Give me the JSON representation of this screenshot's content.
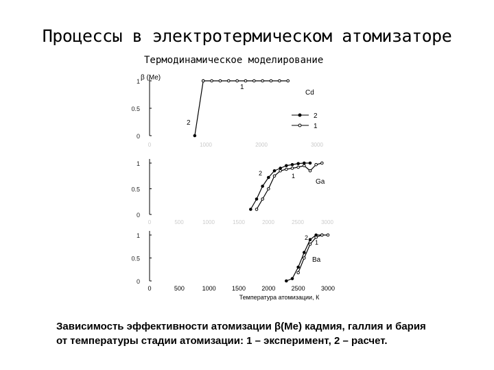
{
  "slide": {
    "title": "Процессы в электротермическом атомизаторе",
    "subtitle": "Термодинамическое моделирование",
    "caption_line1": "Зависимость эффективности атомизации β(Me) кадмия, галлия и бария",
    "caption_line2": "от температуры стадии атомизации: 1 – эксперимент, 2 – расчет."
  },
  "chart_data": [
    {
      "type": "line",
      "panel": "Cd",
      "ylabel": "β (Me)",
      "x_ticks": [
        0,
        1000,
        2000,
        3000
      ],
      "y_ticks": [
        "0",
        "0.5",
        "1"
      ],
      "xlim": [
        0,
        3000
      ],
      "ylim": [
        0,
        1
      ],
      "element_label": "Cd",
      "legend": {
        "placement": "right",
        "entries": [
          "2",
          "1"
        ]
      },
      "curve_labels": [
        "1",
        "2"
      ],
      "series": [
        {
          "name": "2",
          "marker": "filled",
          "x": [
            800,
            950
          ],
          "y": [
            0,
            1
          ]
        },
        {
          "name": "1",
          "marker": "open",
          "x": [
            950,
            1100,
            1250,
            1400,
            1550,
            1700,
            1850,
            2000,
            2150,
            2300,
            2450
          ],
          "y": [
            1,
            1,
            1,
            1,
            1,
            1,
            1,
            1,
            1,
            1,
            1
          ]
        }
      ]
    },
    {
      "type": "line",
      "panel": "Ga",
      "y_ticks": [
        "0",
        "0.5",
        "1"
      ],
      "xlim": [
        0,
        3000
      ],
      "ylim": [
        0,
        1
      ],
      "element_label": "Ga",
      "curve_labels": [
        "2",
        "1"
      ],
      "series": [
        {
          "name": "2",
          "marker": "filled",
          "x": [
            1700,
            1800,
            1900,
            2000,
            2100,
            2200,
            2300,
            2400,
            2500,
            2600,
            2700
          ],
          "y": [
            0.1,
            0.3,
            0.55,
            0.72,
            0.85,
            0.9,
            0.95,
            0.97,
            0.99,
            1.0,
            1.0
          ]
        },
        {
          "name": "1",
          "marker": "open",
          "x": [
            1800,
            1900,
            2000,
            2100,
            2200,
            2300,
            2400,
            2500,
            2600,
            2700,
            2800,
            2900
          ],
          "y": [
            0.1,
            0.3,
            0.5,
            0.75,
            0.85,
            0.88,
            0.9,
            0.92,
            0.95,
            0.85,
            0.97,
            1.0
          ]
        }
      ]
    },
    {
      "type": "line",
      "panel": "Ba",
      "xlabel": "Температура атомизации, К",
      "x_ticks": [
        0,
        500,
        1000,
        1500,
        2000,
        2500,
        3000
      ],
      "y_ticks": [
        "0",
        "0.5",
        "1"
      ],
      "xlim": [
        0,
        3000
      ],
      "ylim": [
        0,
        1
      ],
      "element_label": "Ba",
      "curve_labels": [
        "2",
        "1"
      ],
      "series": [
        {
          "name": "2",
          "marker": "filled",
          "x": [
            2300,
            2400,
            2500,
            2600,
            2700,
            2800,
            2900
          ],
          "y": [
            0,
            0.05,
            0.3,
            0.62,
            0.9,
            1.0,
            1.0
          ]
        },
        {
          "name": "1",
          "marker": "open",
          "x": [
            2500,
            2600,
            2700,
            2800,
            2900,
            3000
          ],
          "y": [
            0.18,
            0.5,
            0.8,
            0.95,
            1.0,
            1.0
          ]
        }
      ]
    }
  ],
  "faint_ticks": {
    "row1": [
      "0",
      "1000",
      "2000",
      "3000"
    ],
    "row2": [
      "0",
      "500",
      "1000",
      "1500",
      "2000",
      "2500",
      "3000"
    ]
  }
}
